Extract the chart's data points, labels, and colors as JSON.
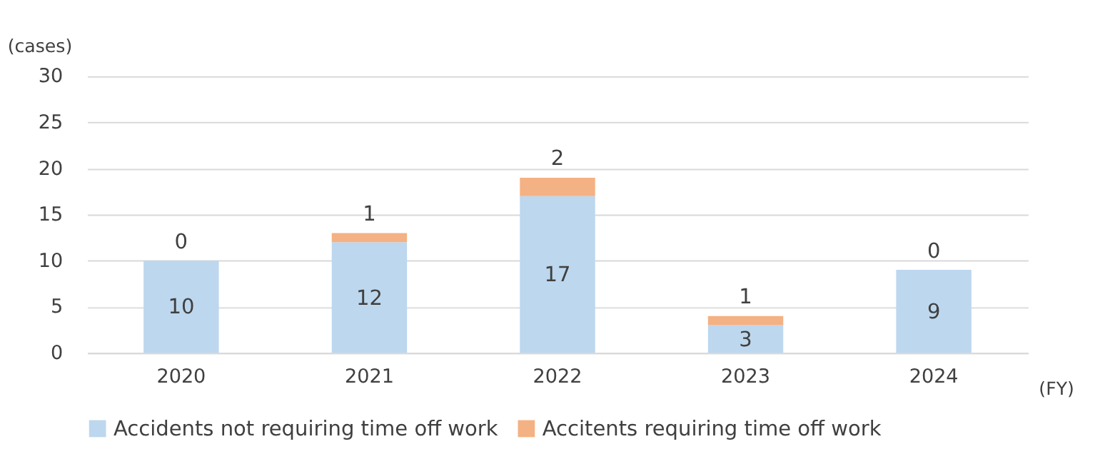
{
  "chart_data": {
    "type": "bar",
    "stacked": true,
    "ylabel": "(cases)",
    "xlabel": "(FY)",
    "categories": [
      "2020",
      "2021",
      "2022",
      "2023",
      "2024"
    ],
    "series": [
      {
        "name": "Accidents not requiring time off work",
        "color": "#bdd7ee",
        "values": [
          10,
          12,
          17,
          3,
          9
        ]
      },
      {
        "name": "Accitents requiring time off work",
        "color": "#f4b183",
        "values": [
          0,
          1,
          2,
          1,
          0
        ]
      }
    ],
    "ylim": [
      0,
      30
    ],
    "yticks": [
      0,
      5,
      10,
      15,
      20,
      25,
      30
    ],
    "grid": "y",
    "legend": "bottom",
    "data_labels": true
  }
}
